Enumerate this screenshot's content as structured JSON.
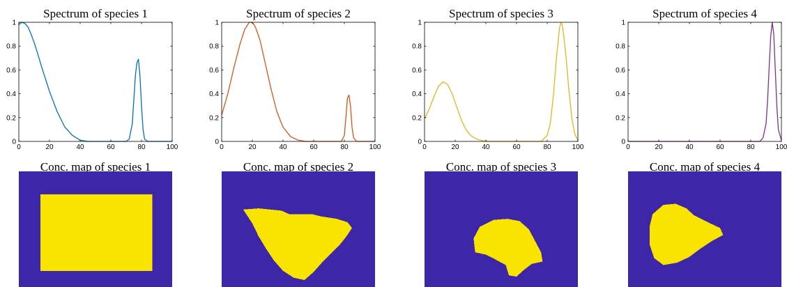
{
  "colors": {
    "series": [
      "#0072BD",
      "#D95319",
      "#EDB120",
      "#7E2F8E"
    ],
    "map_background": "#3E26A8",
    "map_foreground": "#F9E300"
  },
  "chart_data": [
    {
      "type": "line",
      "title": "Spectrum of species 1",
      "xlim": [
        0,
        100
      ],
      "ylim": [
        0,
        1
      ],
      "xticks": [
        "0",
        "20",
        "40",
        "60",
        "80",
        "100"
      ],
      "yticks": [
        "0",
        "0.2",
        "0.4",
        "0.6",
        "0.8",
        "1"
      ],
      "grid": false,
      "x": [
        0,
        2,
        4,
        6,
        8,
        10,
        12,
        15,
        18,
        20,
        25,
        30,
        35,
        40,
        45,
        50,
        55,
        60,
        65,
        70,
        72,
        74,
        75,
        76,
        77,
        78,
        79,
        80,
        81,
        82,
        84,
        90,
        100
      ],
      "y": [
        0.98,
        1.0,
        0.99,
        0.96,
        0.9,
        0.83,
        0.75,
        0.62,
        0.5,
        0.42,
        0.25,
        0.12,
        0.05,
        0.01,
        0,
        0,
        0,
        0,
        0,
        0,
        0.02,
        0.15,
        0.35,
        0.55,
        0.66,
        0.69,
        0.55,
        0.3,
        0.1,
        0.02,
        0,
        0,
        0
      ]
    },
    {
      "type": "line",
      "title": "Spectrum of species 2",
      "xlim": [
        0,
        100
      ],
      "ylim": [
        0,
        1
      ],
      "xticks": [
        "0",
        "20",
        "40",
        "60",
        "80",
        "100"
      ],
      "yticks": [
        "0",
        "0.2",
        "0.4",
        "0.6",
        "0.8",
        "1"
      ],
      "grid": false,
      "x": [
        0,
        4,
        8,
        12,
        15,
        18,
        20,
        22,
        25,
        28,
        32,
        36,
        40,
        45,
        50,
        55,
        60,
        78,
        80,
        81,
        82,
        83,
        84,
        85,
        86,
        88,
        100
      ],
      "y": [
        0.22,
        0.4,
        0.62,
        0.82,
        0.94,
        1.0,
        1.0,
        0.96,
        0.85,
        0.68,
        0.45,
        0.25,
        0.12,
        0.04,
        0.01,
        0,
        0,
        0,
        0.05,
        0.2,
        0.36,
        0.39,
        0.3,
        0.12,
        0.03,
        0,
        0
      ]
    },
    {
      "type": "line",
      "title": "Spectrum of species 3",
      "xlim": [
        0,
        100
      ],
      "ylim": [
        0,
        1
      ],
      "xticks": [
        "0",
        "20",
        "40",
        "60",
        "80",
        "100"
      ],
      "yticks": [
        "0",
        "0.2",
        "0.4",
        "0.6",
        "0.8",
        "1"
      ],
      "grid": false,
      "x": [
        0,
        3,
        6,
        9,
        12,
        15,
        18,
        21,
        24,
        27,
        30,
        34,
        38,
        42,
        50,
        60,
        70,
        76,
        80,
        82,
        84,
        86,
        88,
        89,
        90,
        92,
        94,
        96,
        98,
        100
      ],
      "y": [
        0.19,
        0.27,
        0.37,
        0.46,
        0.5,
        0.48,
        0.4,
        0.29,
        0.18,
        0.1,
        0.05,
        0.02,
        0.005,
        0,
        0,
        0,
        0,
        0,
        0.05,
        0.15,
        0.38,
        0.7,
        0.95,
        1.0,
        0.97,
        0.75,
        0.45,
        0.2,
        0.06,
        0.01
      ]
    },
    {
      "type": "line",
      "title": "Spectrum of species 4",
      "xlim": [
        0,
        100
      ],
      "ylim": [
        0,
        1
      ],
      "xticks": [
        "0",
        "20",
        "40",
        "60",
        "80",
        "100"
      ],
      "yticks": [
        "0",
        "0.2",
        "0.4",
        "0.6",
        "0.8",
        "1"
      ],
      "grid": false,
      "x": [
        0,
        60,
        80,
        86,
        88,
        90,
        91,
        92,
        93,
        94,
        95,
        96,
        97,
        98,
        100
      ],
      "y": [
        0,
        0,
        0,
        0,
        0.03,
        0.15,
        0.35,
        0.62,
        0.88,
        1.0,
        0.9,
        0.6,
        0.3,
        0.1,
        0.01
      ]
    },
    {
      "type": "heatmap",
      "title": "Conc. map of species 1",
      "grid": false,
      "shape_polygon": [
        [
          0.14,
          0.2
        ],
        [
          0.87,
          0.2
        ],
        [
          0.87,
          0.86
        ],
        [
          0.14,
          0.86
        ]
      ]
    },
    {
      "type": "heatmap",
      "title": "Conc. map of species 2",
      "grid": false,
      "shape_polygon": [
        [
          0.14,
          0.33
        ],
        [
          0.24,
          0.32
        ],
        [
          0.39,
          0.34
        ],
        [
          0.44,
          0.37
        ],
        [
          0.59,
          0.37
        ],
        [
          0.65,
          0.39
        ],
        [
          0.75,
          0.41
        ],
        [
          0.82,
          0.44
        ],
        [
          0.85,
          0.49
        ],
        [
          0.82,
          0.55
        ],
        [
          0.78,
          0.62
        ],
        [
          0.72,
          0.7
        ],
        [
          0.66,
          0.78
        ],
        [
          0.6,
          0.87
        ],
        [
          0.54,
          0.94
        ],
        [
          0.47,
          0.92
        ],
        [
          0.4,
          0.86
        ],
        [
          0.34,
          0.77
        ],
        [
          0.29,
          0.67
        ],
        [
          0.24,
          0.56
        ],
        [
          0.2,
          0.45
        ],
        [
          0.17,
          0.39
        ]
      ]
    },
    {
      "type": "heatmap",
      "title": "Conc. map of species 3",
      "grid": false,
      "shape_polygon": [
        [
          0.36,
          0.48
        ],
        [
          0.45,
          0.42
        ],
        [
          0.54,
          0.41
        ],
        [
          0.62,
          0.43
        ],
        [
          0.68,
          0.5
        ],
        [
          0.72,
          0.6
        ],
        [
          0.76,
          0.7
        ],
        [
          0.77,
          0.78
        ],
        [
          0.7,
          0.8
        ],
        [
          0.65,
          0.85
        ],
        [
          0.6,
          0.91
        ],
        [
          0.55,
          0.9
        ],
        [
          0.53,
          0.81
        ],
        [
          0.46,
          0.76
        ],
        [
          0.4,
          0.72
        ],
        [
          0.33,
          0.7
        ],
        [
          0.32,
          0.58
        ]
      ]
    },
    {
      "type": "heatmap",
      "title": "Conc. map of species 4",
      "grid": false,
      "shape_polygon": [
        [
          0.16,
          0.37
        ],
        [
          0.23,
          0.29
        ],
        [
          0.31,
          0.28
        ],
        [
          0.38,
          0.32
        ],
        [
          0.43,
          0.38
        ],
        [
          0.52,
          0.44
        ],
        [
          0.6,
          0.49
        ],
        [
          0.62,
          0.55
        ],
        [
          0.55,
          0.6
        ],
        [
          0.47,
          0.67
        ],
        [
          0.4,
          0.74
        ],
        [
          0.32,
          0.79
        ],
        [
          0.23,
          0.81
        ],
        [
          0.17,
          0.75
        ],
        [
          0.14,
          0.63
        ],
        [
          0.14,
          0.48
        ]
      ]
    }
  ]
}
